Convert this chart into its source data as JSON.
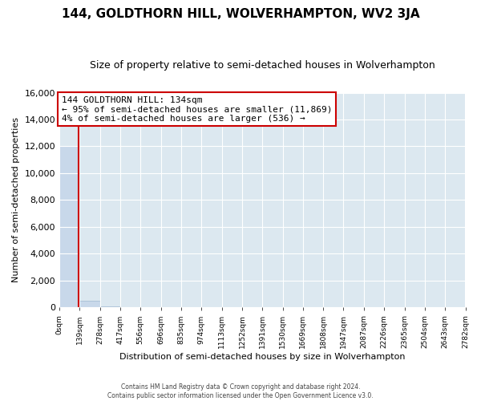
{
  "title": "144, GOLDTHORN HILL, WOLVERHAMPTON, WV2 3JA",
  "subtitle": "Size of property relative to semi-detached houses in Wolverhampton",
  "xlabel": "Distribution of semi-detached houses by size in Wolverhampton",
  "ylabel": "Number of semi-detached properties",
  "annotation_title": "144 GOLDTHORN HILL: 134sqm",
  "annotation_line1": "← 95% of semi-detached houses are smaller (11,869)",
  "annotation_line2": "4% of semi-detached houses are larger (536) →",
  "footer1": "Contains HM Land Registry data © Crown copyright and database right 2024.",
  "footer2": "Contains public sector information licensed under the Open Government Licence v3.0.",
  "bar_edges": [
    0,
    139,
    278,
    417,
    556,
    696,
    835,
    974,
    1113,
    1252,
    1391,
    1530,
    1669,
    1808,
    1947,
    2087,
    2226,
    2365,
    2504,
    2643,
    2782
  ],
  "bar_heights": [
    12050,
    490,
    50,
    30,
    20,
    15,
    10,
    8,
    6,
    5,
    4,
    3,
    2,
    2,
    1,
    1,
    1,
    0,
    0,
    0
  ],
  "bar_color": "#c8d8ea",
  "bar_edgecolor": "#a0b8d0",
  "property_line_color": "#cc0000",
  "property_line_x": 134,
  "annotation_box_edgecolor": "#cc0000",
  "annotation_box_facecolor": "#ffffff",
  "plot_bg_color": "#dce8f0",
  "background_color": "#ffffff",
  "grid_color": "#ffffff",
  "ylim": [
    0,
    16000
  ],
  "yticks": [
    0,
    2000,
    4000,
    6000,
    8000,
    10000,
    12000,
    14000,
    16000
  ],
  "xtick_labels": [
    "0sqm",
    "139sqm",
    "278sqm",
    "417sqm",
    "556sqm",
    "696sqm",
    "835sqm",
    "974sqm",
    "1113sqm",
    "1252sqm",
    "1391sqm",
    "1530sqm",
    "1669sqm",
    "1808sqm",
    "1947sqm",
    "2087sqm",
    "2226sqm",
    "2365sqm",
    "2504sqm",
    "2643sqm",
    "2782sqm"
  ],
  "title_fontsize": 11,
  "subtitle_fontsize": 9,
  "xlabel_fontsize": 8,
  "ylabel_fontsize": 8
}
